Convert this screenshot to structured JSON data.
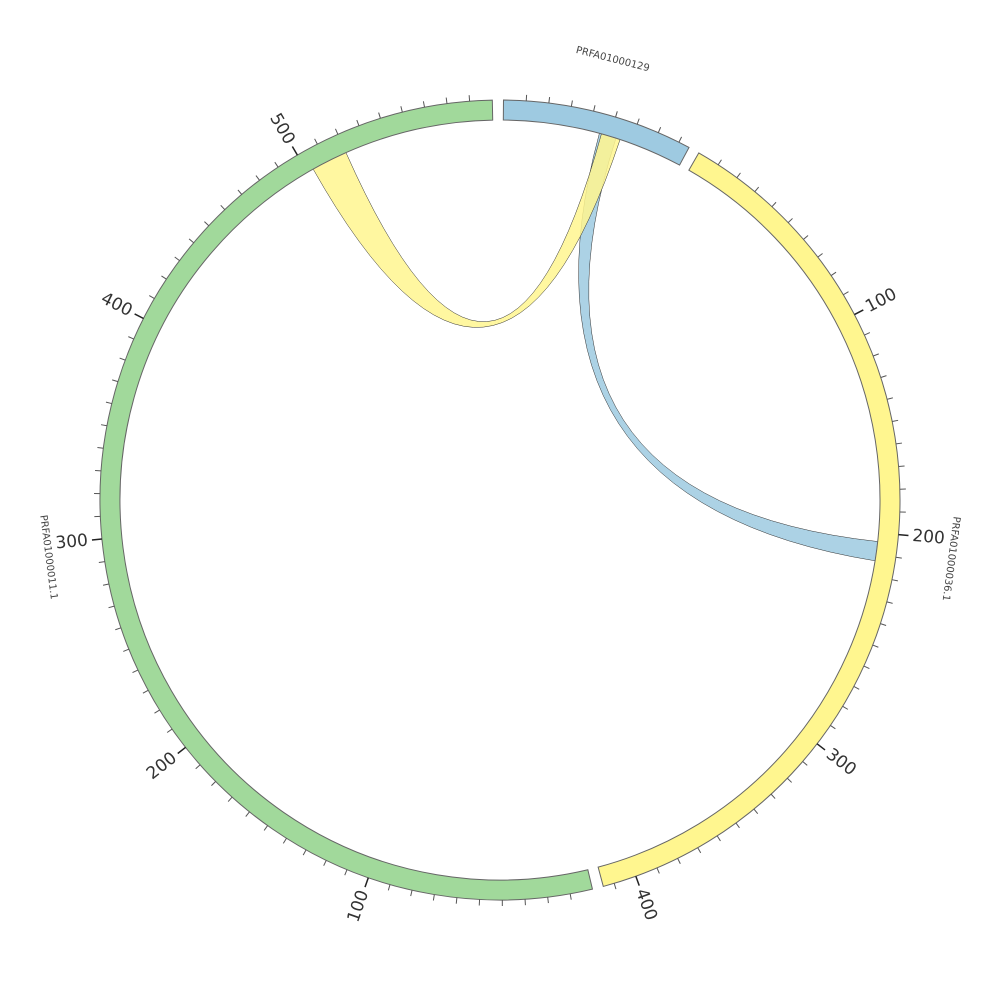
{
  "chart_data": {
    "type": "chord",
    "segments": [
      {
        "name": "PRFA01000129",
        "length": 85,
        "color": "#9ecae1",
        "ticks": []
      },
      {
        "name": "PRFA01000036.1",
        "length": 415,
        "color": "#fff68f",
        "ticks": [
          100,
          200,
          300,
          400
        ]
      },
      {
        "name": "PRFA01000011.1",
        "length": 590,
        "color": "#a1d99b",
        "ticks": [
          100,
          200,
          300,
          400,
          500
        ]
      }
    ],
    "minor_tick_interval": 10,
    "links": [
      {
        "source": {
          "segment": 0,
          "start": 45,
          "end": 53
        },
        "target": {
          "segment": 1,
          "start": 204,
          "end": 213
        },
        "color": "#9ecae1"
      },
      {
        "source": {
          "segment": 2,
          "start": 503,
          "end": 520
        },
        "target": {
          "segment": 0,
          "start": 46,
          "end": 55
        },
        "color": "#fff68f"
      }
    ]
  }
}
